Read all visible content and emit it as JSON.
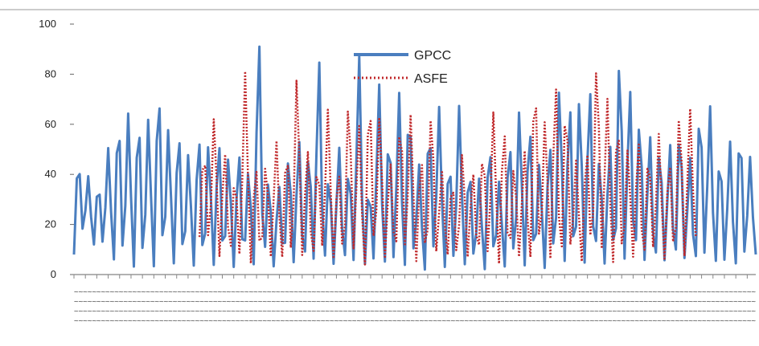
{
  "chart_data": {
    "type": "line",
    "title": "",
    "xlabel": "",
    "ylabel": "",
    "ylim": [
      0,
      100
    ],
    "y_ticks": [
      0,
      20,
      40,
      60,
      80,
      100
    ],
    "grid": false,
    "legend_position": "top-center",
    "x_count": 240,
    "series": [
      {
        "name": "GPCC",
        "color": "#4a7ebf",
        "style": "solid",
        "peaks": [
          47,
          40,
          37,
          52,
          63,
          67,
          63,
          65,
          74,
          61,
          57,
          51,
          55,
          55,
          52,
          50,
          47,
          44,
          91,
          40,
          35,
          50,
          53,
          52,
          85,
          42,
          51,
          45,
          88,
          36,
          77,
          59,
          74,
          70,
          45,
          62,
          69,
          47,
          70,
          43,
          40,
          53,
          39,
          54,
          69,
          59,
          47,
          52,
          79,
          66,
          75,
          72,
          49,
          51,
          92,
          73,
          66,
          55,
          54,
          52,
          61,
          47,
          70,
          68,
          50,
          54,
          60,
          48
        ],
        "troughs": [
          8,
          15,
          12,
          10,
          6,
          4,
          3,
          2,
          3,
          5,
          4,
          3,
          3,
          2,
          3,
          4,
          2,
          5,
          3,
          4,
          2,
          5,
          3,
          2,
          4,
          3,
          2,
          4,
          3,
          2,
          4,
          3,
          2,
          3,
          4,
          2,
          5,
          3,
          2,
          4,
          3,
          2,
          4,
          3,
          2,
          3,
          4,
          2,
          3,
          4,
          2,
          3,
          4,
          3,
          2,
          3,
          4,
          3,
          2,
          3,
          4,
          3,
          2,
          4,
          3,
          2,
          3,
          4
        ]
      },
      {
        "name": "ASFE",
        "color": "#c0292b",
        "style": "dotted",
        "start_index": 44,
        "end_index": 218,
        "peaks": [
          50,
          66,
          48,
          40,
          84,
          43,
          47,
          54,
          51,
          83,
          49,
          46,
          68,
          41,
          73,
          60,
          72,
          67,
          44,
          65,
          66,
          46,
          69,
          42,
          38,
          51,
          40,
          52,
          67,
          58,
          46,
          50,
          78,
          65,
          74,
          71,
          47,
          50,
          90,
          71,
          63,
          53,
          52,
          50,
          58,
          45,
          69,
          67
        ],
        "troughs": [
          15,
          10,
          6,
          8,
          5,
          4,
          6,
          5,
          7,
          4,
          6,
          5,
          8,
          6,
          5,
          7,
          4,
          6,
          5,
          7,
          6,
          5,
          4,
          6,
          8,
          5,
          6,
          7,
          5,
          4,
          6,
          5,
          7,
          6,
          5,
          4,
          6,
          5,
          7,
          6,
          5,
          4,
          6,
          5,
          7,
          6,
          5,
          4
        ]
      }
    ],
    "x_tick_rows": [
      "~~~~~~~~~~~~~~~~~~~~~~~~~~~~~~~~~~~~~~~~~~~~~~~~~~~~~~~~~~~~~~~~~~~~~~~~~~~~~~~~~~~~~~~~~~~~~~~~~~~~~~~~~~~~~~~~~~~~~~~~~~~~~~~~~~~~~~~~~~~~~~~~~~~~~~~~",
      "~~~~~~~~~~~~~~~~~~~~~~~~~~~~~~~~~~~~~~~~~~~~~~~~~~~~~~~~~~~~~~~~~~~~~~~~~~~~~~~~~~~~~~~~~~~~~~~~~~~~~~~~~~~~~~~~~~~~~~~~~~~~~~~~~~~~~~~~~~~~~~~~~~~~~~~~",
      "~~~~~~~~~~~~~~~~~~~~~~~~~~~~~~~~~~~~~~~~~~~~~~~~~~~~~~~~~~~~~~~~~~~~~~~~~~~~~~~~~~~~~~~~~~~~~~~~~~~~~~~~~~~~~~~~~~~~~~~~~~~~~~~~~~~~~~~~~~~~~~~~~~~~~~~~",
      "~~~~~~~~~~~~~~~~~~~~~~~~~~~~~~~~~~~~~~~~~~~~~~~~~~~~~~~~~~~~~~~~~~~~~~~~~~~~~~~~~~~~~~~~~~~~~~~~~~~~~~~~~~~~~~~~~~~~~~~~~~~~~~~~~~~~~~~~~~~~~~~~~~~~~~~~"
    ]
  }
}
